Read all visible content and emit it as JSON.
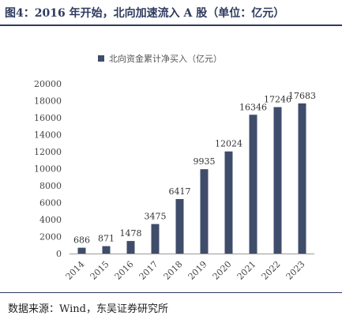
{
  "header": {
    "title": "图4：2016 年开始，北向加速流入 A 股（单位：亿元）"
  },
  "footer": {
    "source": "数据来源：Wind，东吴证券研究所"
  },
  "colors": {
    "bar": "#3f4d6b",
    "title": "#2f3b5f"
  },
  "chart_data": {
    "type": "bar",
    "title": "",
    "xlabel": "",
    "ylabel": "",
    "categories": [
      "2014",
      "2015",
      "2016",
      "2017",
      "2018",
      "2019",
      "2020",
      "2021",
      "2022",
      "2023"
    ],
    "series": [
      {
        "name": "北向资金累计净买入（亿元）",
        "values": [
          686,
          871,
          1478,
          3475,
          6417,
          9935,
          12024,
          16346,
          17246,
          17683
        ]
      }
    ],
    "ylim": [
      0,
      20000
    ],
    "yticks": [
      0,
      2000,
      4000,
      6000,
      8000,
      10000,
      12000,
      14000,
      16000,
      18000,
      20000
    ],
    "legend_position": "top-center",
    "grid": false,
    "data_labels": true,
    "x_tick_rotation": "rotated"
  }
}
